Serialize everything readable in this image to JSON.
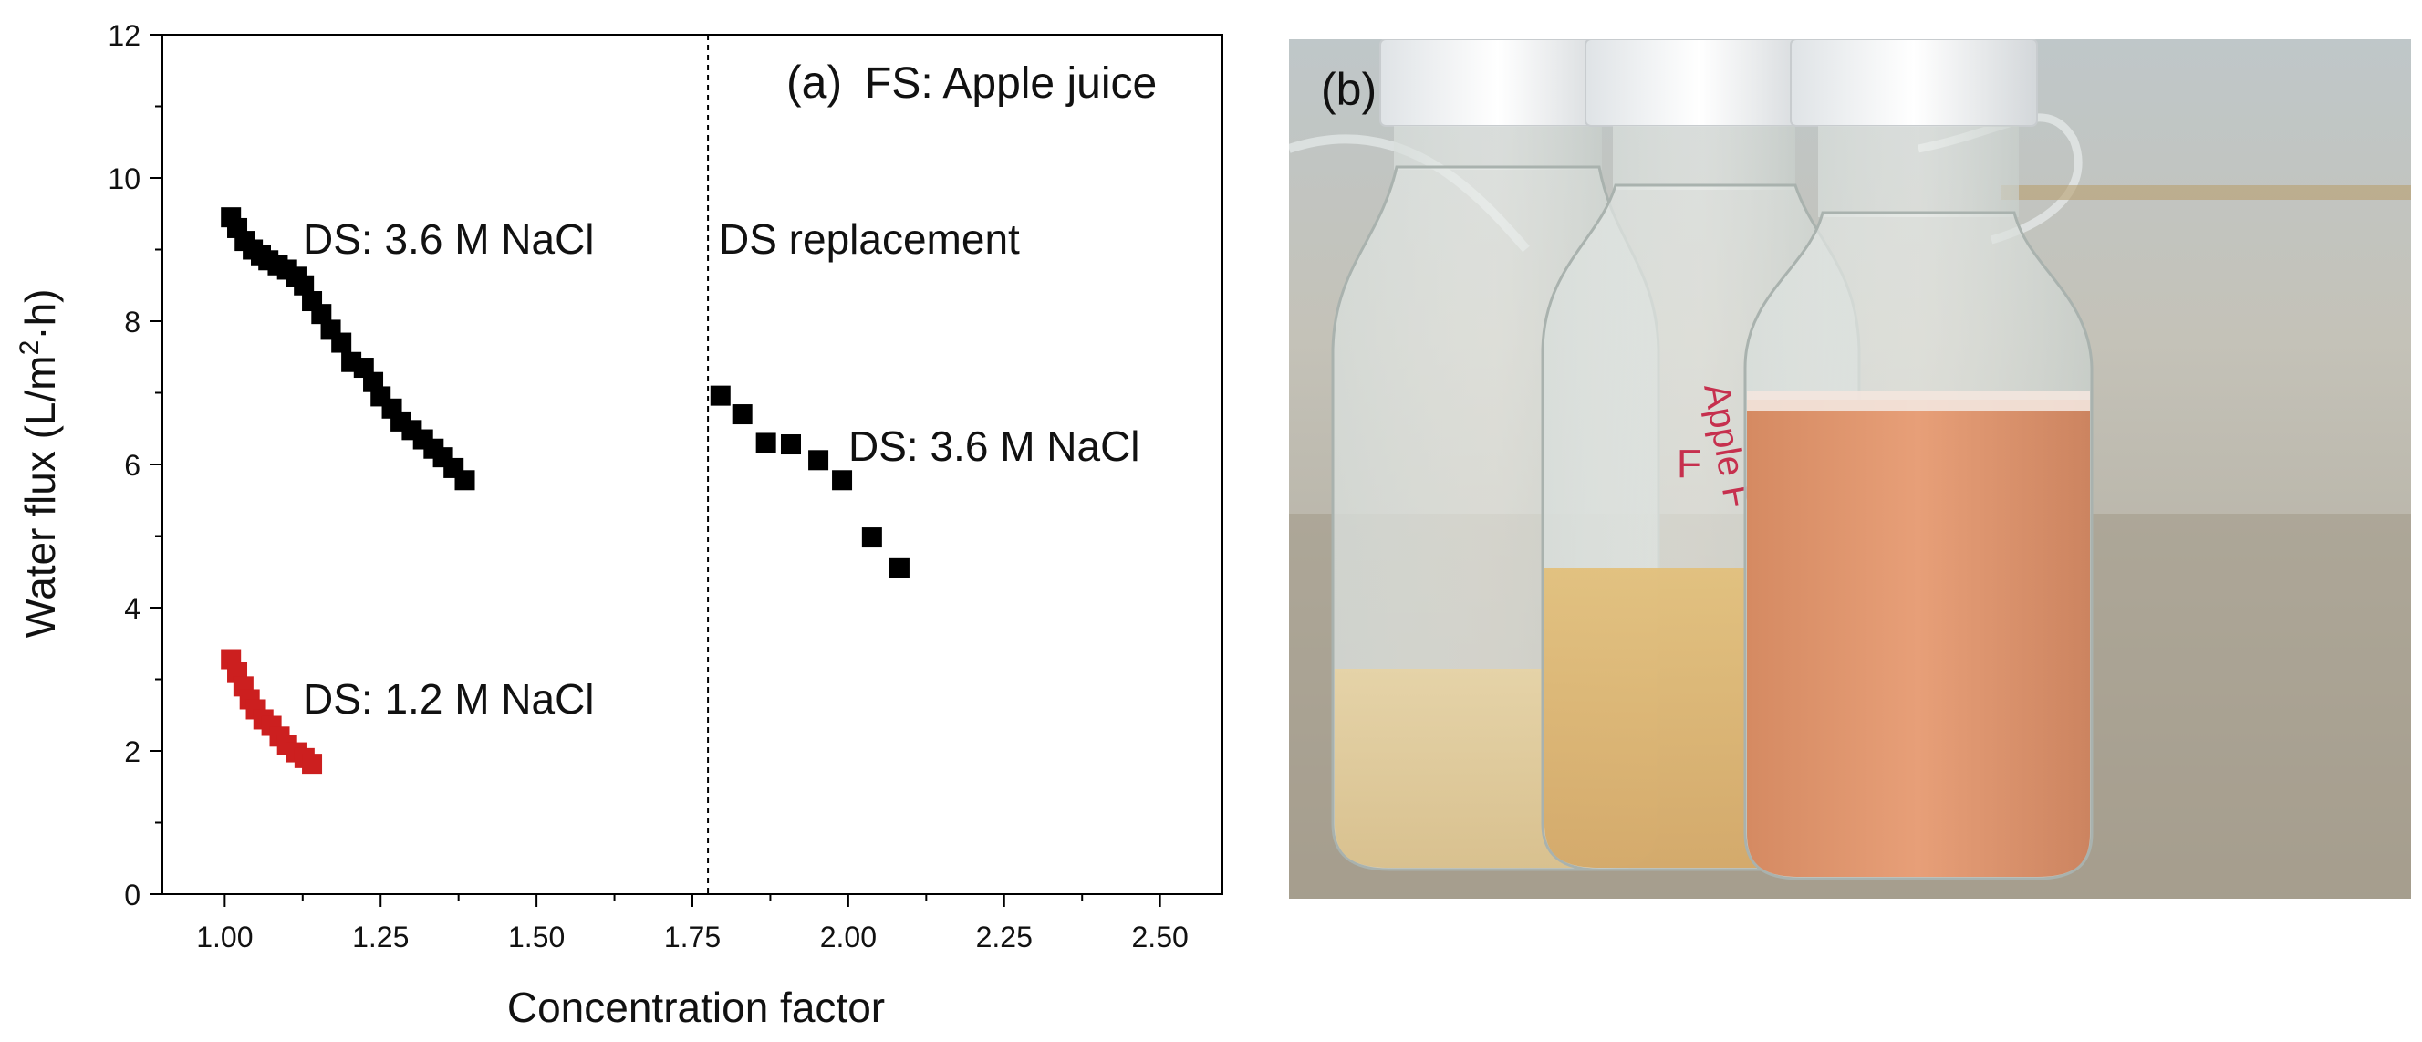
{
  "figure": {
    "panel_a_label": "(a)",
    "panel_b_label": "(b)",
    "photo": {
      "description_icon": "photo-of-three-bottles-icon",
      "bottle_labels": [
        "Apple F",
        "F"
      ]
    }
  },
  "chart_data": {
    "type": "scatter",
    "xlabel": "Concentration factor",
    "ylabel_main": "Water flux (L/m",
    "ylabel_sup": "2",
    "ylabel_tail": "·h)",
    "xlim": [
      0.9,
      2.6
    ],
    "ylim": [
      0,
      12
    ],
    "xticks": [
      1.0,
      1.25,
      1.5,
      1.75,
      2.0,
      2.25,
      2.5
    ],
    "xtick_labels": [
      "1.00",
      "1.25",
      "1.50",
      "1.75",
      "2.00",
      "2.25",
      "2.50"
    ],
    "yticks": [
      0,
      2,
      4,
      6,
      8,
      10,
      12
    ],
    "ytick_labels": [
      "0",
      "2",
      "4",
      "6",
      "8",
      "10",
      "12"
    ],
    "vline_x": 1.775,
    "annotations": {
      "panel_fs": "FS: Apple juice",
      "ds_replacement": "DS replacement",
      "ds_36_first": "DS: 3.6 M NaCl",
      "ds_36_second": "DS: 3.6 M NaCl",
      "ds_12": "DS: 1.2 M NaCl"
    },
    "series": [
      {
        "color": "#000000",
        "points": [
          [
            1.01,
            9.45
          ],
          [
            1.02,
            9.3
          ],
          [
            1.032,
            9.12
          ],
          [
            1.045,
            9.0
          ],
          [
            1.058,
            8.92
          ],
          [
            1.07,
            8.85
          ],
          [
            1.085,
            8.78
          ],
          [
            1.1,
            8.72
          ],
          [
            1.115,
            8.62
          ],
          [
            1.127,
            8.5
          ],
          [
            1.14,
            8.28
          ],
          [
            1.155,
            8.1
          ],
          [
            1.17,
            7.88
          ],
          [
            1.187,
            7.7
          ],
          [
            1.203,
            7.43
          ],
          [
            1.223,
            7.35
          ],
          [
            1.238,
            7.15
          ],
          [
            1.25,
            6.95
          ],
          [
            1.268,
            6.78
          ],
          [
            1.282,
            6.6
          ],
          [
            1.3,
            6.48
          ],
          [
            1.318,
            6.35
          ],
          [
            1.335,
            6.22
          ],
          [
            1.35,
            6.1
          ],
          [
            1.367,
            5.95
          ],
          [
            1.385,
            5.78
          ]
        ]
      },
      {
        "color": "#cc1f1f",
        "points": [
          [
            1.01,
            3.28
          ],
          [
            1.02,
            3.1
          ],
          [
            1.03,
            2.9
          ],
          [
            1.04,
            2.72
          ],
          [
            1.05,
            2.58
          ],
          [
            1.062,
            2.44
          ],
          [
            1.075,
            2.35
          ],
          [
            1.088,
            2.2
          ],
          [
            1.1,
            2.08
          ],
          [
            1.115,
            1.98
          ],
          [
            1.128,
            1.9
          ],
          [
            1.14,
            1.82
          ]
        ]
      },
      {
        "color": "#000000",
        "points": [
          [
            1.795,
            6.96
          ],
          [
            1.83,
            6.7
          ],
          [
            1.868,
            6.3
          ],
          [
            1.908,
            6.28
          ],
          [
            1.952,
            6.06
          ],
          [
            1.99,
            5.78
          ],
          [
            2.038,
            4.98
          ],
          [
            2.082,
            4.55
          ]
        ]
      }
    ]
  }
}
